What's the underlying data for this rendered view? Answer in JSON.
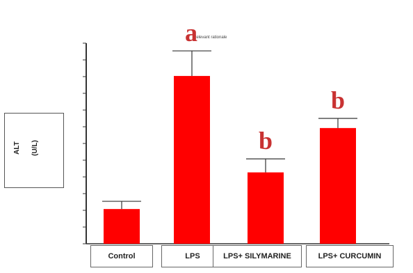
{
  "colors": {
    "bar": "#ff0000",
    "letter": "#c83232",
    "axis": "#333333"
  },
  "ylabel": {
    "text": "ALT",
    "unit": "(U/L)"
  },
  "chart_data": {
    "type": "bar",
    "categories": [
      "Control",
      "LPS",
      "LPS+ SILYMARINE",
      "LPS+ CURCUMIN"
    ],
    "values": [
      18,
      87,
      37,
      60
    ],
    "errors": [
      4,
      13,
      7,
      5
    ],
    "significance": [
      "",
      "a",
      "b",
      "b"
    ],
    "annotation": "Relevant rationale",
    "ylim": [
      0,
      104
    ],
    "title": "",
    "xlabel": "",
    "grid": false,
    "legend": "none"
  }
}
